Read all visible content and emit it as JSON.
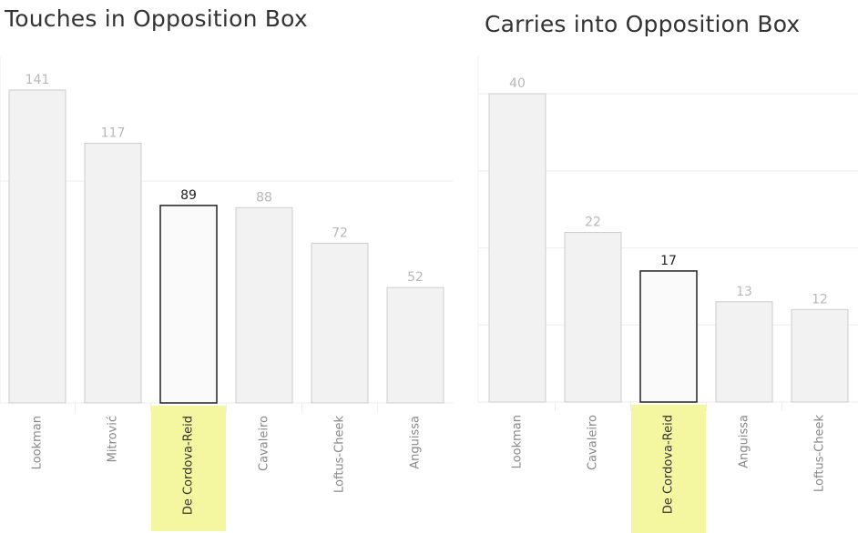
{
  "colors": {
    "bar_fill": "#f2f2f2",
    "bar_stroke": "#cccccc",
    "highlight_bar_fill": "#fafafa",
    "highlight_bar_stroke": "#222222",
    "highlight_label_bg": "#f5f7a0",
    "grid": "#eeeeee"
  },
  "chart_data": [
    {
      "type": "bar",
      "title": "Touches in Opposition Box",
      "categories": [
        "Lookman",
        "Mitrović",
        "De Cordova-Reid",
        "Cavaleiro",
        "Loftus-Cheek",
        "Anguissa"
      ],
      "values": [
        141,
        117,
        89,
        88,
        72,
        52
      ],
      "highlight": "De Cordova-Reid",
      "ylim": [
        0,
        141
      ],
      "gridlines": [
        100
      ],
      "grid": true,
      "legend": "none"
    },
    {
      "type": "bar",
      "title": "Carries into Opposition Box",
      "categories": [
        "Lookman",
        "Cavaleiro",
        "De Cordova-Reid",
        "Anguissa",
        "Loftus-Cheek"
      ],
      "values": [
        40,
        22,
        17,
        13,
        12
      ],
      "highlight": "De Cordova-Reid",
      "ylim": [
        0,
        40
      ],
      "gridlines": [
        10,
        20,
        30,
        40
      ],
      "grid": true,
      "legend": "none"
    }
  ]
}
